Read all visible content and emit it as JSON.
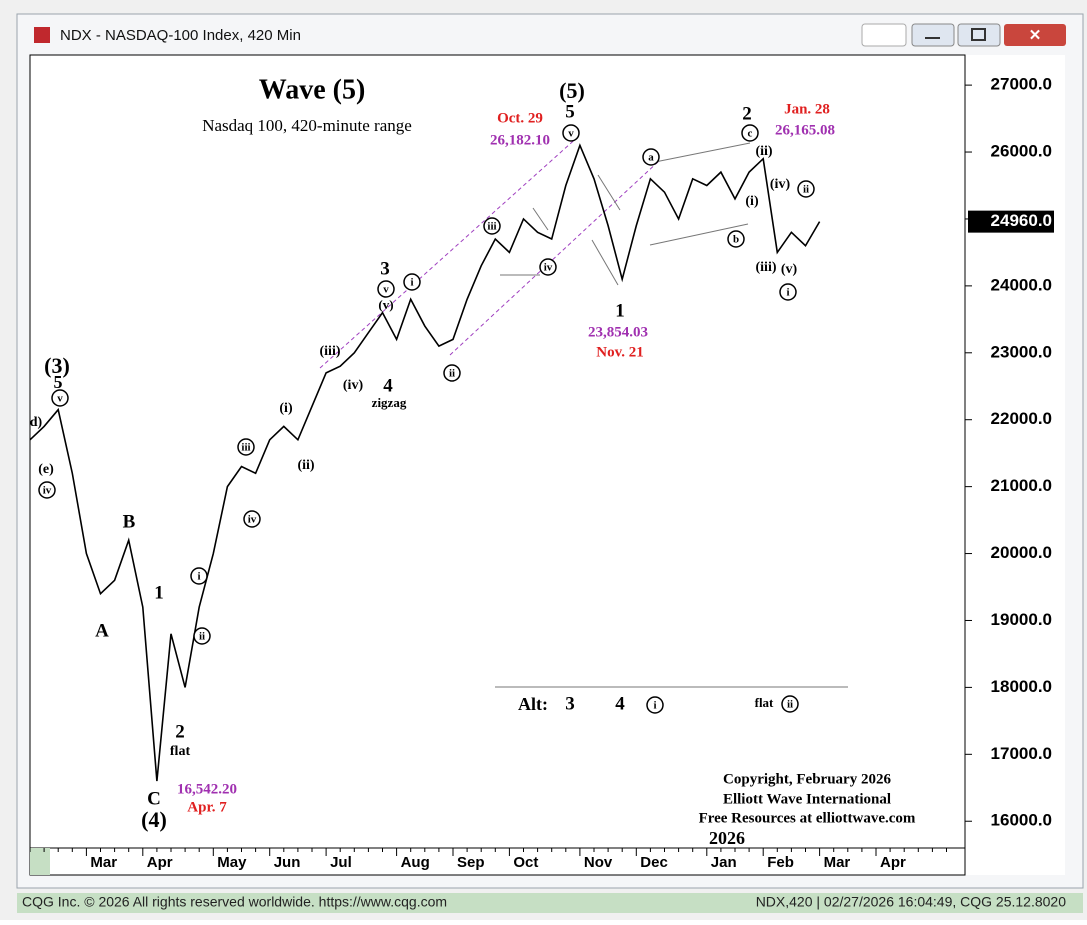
{
  "window": {
    "title": "NDX - NASDAQ-100 Index, 420 Min",
    "status_left": "CQG Inc. © 2026 All rights reserved worldwide. https://www.cqg.com",
    "status_right": "NDX,420 | 02/27/2026 16:04:49, CQG 25.12.8020"
  },
  "chart_data": {
    "type": "line",
    "title": "Wave (5)",
    "subtitle": "Nasdaq 100, 420-minute range",
    "categories": [
      null,
      null,
      null,
      null,
      "Mar",
      null,
      null,
      null,
      "Apr",
      null,
      null,
      null,
      null,
      "May",
      null,
      null,
      null,
      "Jun",
      null,
      null,
      null,
      "Jul",
      null,
      null,
      null,
      null,
      "Aug",
      null,
      null,
      null,
      "Sep",
      null,
      null,
      null,
      "Oct",
      null,
      null,
      null,
      null,
      "Nov",
      null,
      null,
      null,
      "Dec",
      null,
      null,
      null,
      null,
      "Jan",
      null,
      null,
      null,
      "Feb",
      null,
      null,
      null,
      "Mar",
      null,
      null,
      null,
      "Apr",
      null,
      null,
      null,
      null,
      null
    ],
    "year_label": "2026",
    "series": [
      {
        "name": "NDX",
        "color": "#000000",
        "values": [
          21700,
          21900,
          22150,
          21200,
          20000,
          19400,
          19600,
          20200,
          19200,
          16600,
          18800,
          18000,
          19200,
          20000,
          21000,
          21300,
          21200,
          21700,
          21900,
          21700,
          22200,
          22700,
          22800,
          23000,
          23300,
          23600,
          23200,
          23800,
          23400,
          23100,
          23200,
          23800,
          24300,
          24700,
          24500,
          25000,
          24800,
          24700,
          25500,
          26100,
          25600,
          24900,
          24100,
          24900,
          25600,
          25400,
          25000,
          25600,
          25500,
          25700,
          25300,
          25700,
          25900,
          24500,
          24800,
          24600,
          24960,
          null,
          null,
          null,
          null,
          null,
          null,
          null,
          null,
          null
        ]
      }
    ],
    "ylim": [
      15600,
      27450
    ],
    "yticks": [
      {
        "value": 16000,
        "label": "16000.0"
      },
      {
        "value": 17000,
        "label": "17000.0"
      },
      {
        "value": 18000,
        "label": "18000.0"
      },
      {
        "value": 19000,
        "label": "19000.0"
      },
      {
        "value": 20000,
        "label": "20000.0"
      },
      {
        "value": 21000,
        "label": "21000.0"
      },
      {
        "value": 22000,
        "label": "22000.0"
      },
      {
        "value": 23000,
        "label": "23000.0"
      },
      {
        "value": 24000,
        "label": "24000.0"
      },
      {
        "value": 25000,
        "label": "25000.0"
      },
      {
        "value": 26000,
        "label": "26000.0"
      },
      {
        "value": 27000,
        "label": "27000.0"
      }
    ],
    "last_price": {
      "value": 24960,
      "label": "24960.0"
    },
    "annotations": [
      "(3)",
      "5",
      "d)",
      "(e)",
      "B",
      "A",
      "1",
      "2",
      "flat",
      "C",
      "(4)",
      "16,542.20",
      "Apr. 7",
      "(i)",
      "(ii)",
      "(iii)",
      "(iv)",
      "3",
      "(v)",
      "4",
      "zigzag",
      "(5)",
      "5",
      "Oct. 29",
      "26,182.10",
      "1",
      "23,854.03",
      "Nov. 21",
      "2",
      "Jan. 28",
      "26,165.08",
      "(ii)",
      "(i)",
      "(iv)",
      "(iii)",
      "(v)",
      "Alt:",
      "3",
      "4",
      "flat",
      "Copyright, February 2026",
      "Elliott Wave International",
      "Free Resources at elliottwave.com"
    ],
    "circled_labels": [
      "v",
      "iv",
      "iii",
      "iv",
      "i",
      "ii",
      "v",
      "i",
      "iii",
      "ii",
      "iv",
      "v",
      "a",
      "b",
      "c",
      "ii",
      "i",
      "i",
      "ii"
    ]
  }
}
